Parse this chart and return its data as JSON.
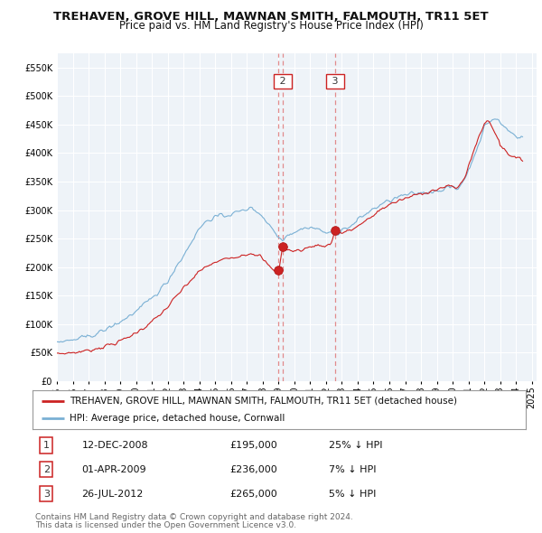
{
  "title": "TREHAVEN, GROVE HILL, MAWNAN SMITH, FALMOUTH, TR11 5ET",
  "subtitle": "Price paid vs. HM Land Registry's House Price Index (HPI)",
  "ylim": [
    0,
    575000
  ],
  "yticks": [
    0,
    50000,
    100000,
    150000,
    200000,
    250000,
    300000,
    350000,
    400000,
    450000,
    500000,
    550000
  ],
  "xlim_start": 1995.0,
  "xlim_end": 2025.3,
  "background_color": "#ffffff",
  "plot_bg_color": "#eef3f8",
  "grid_color": "#ffffff",
  "hpi_color": "#7ab0d4",
  "price_color": "#cc2222",
  "dashed_line_color": "#e08080",
  "legend_label_price": "TREHAVEN, GROVE HILL, MAWNAN SMITH, FALMOUTH, TR11 5ET (detached house)",
  "legend_label_hpi": "HPI: Average price, detached house, Cornwall",
  "transactions": [
    {
      "num": 1,
      "date": "12-DEC-2008",
      "price": 195000,
      "pct": "25%",
      "dir": "↓",
      "year": 2008.96,
      "show_label": false
    },
    {
      "num": 2,
      "date": "01-APR-2009",
      "price": 236000,
      "pct": "7%",
      "dir": "↓",
      "year": 2009.25,
      "show_label": true
    },
    {
      "num": 3,
      "date": "26-JUL-2012",
      "price": 265000,
      "pct": "5%",
      "dir": "↓",
      "year": 2012.56,
      "show_label": true
    }
  ],
  "footer_line1": "Contains HM Land Registry data © Crown copyright and database right 2024.",
  "footer_line2": "This data is licensed under the Open Government Licence v3.0."
}
